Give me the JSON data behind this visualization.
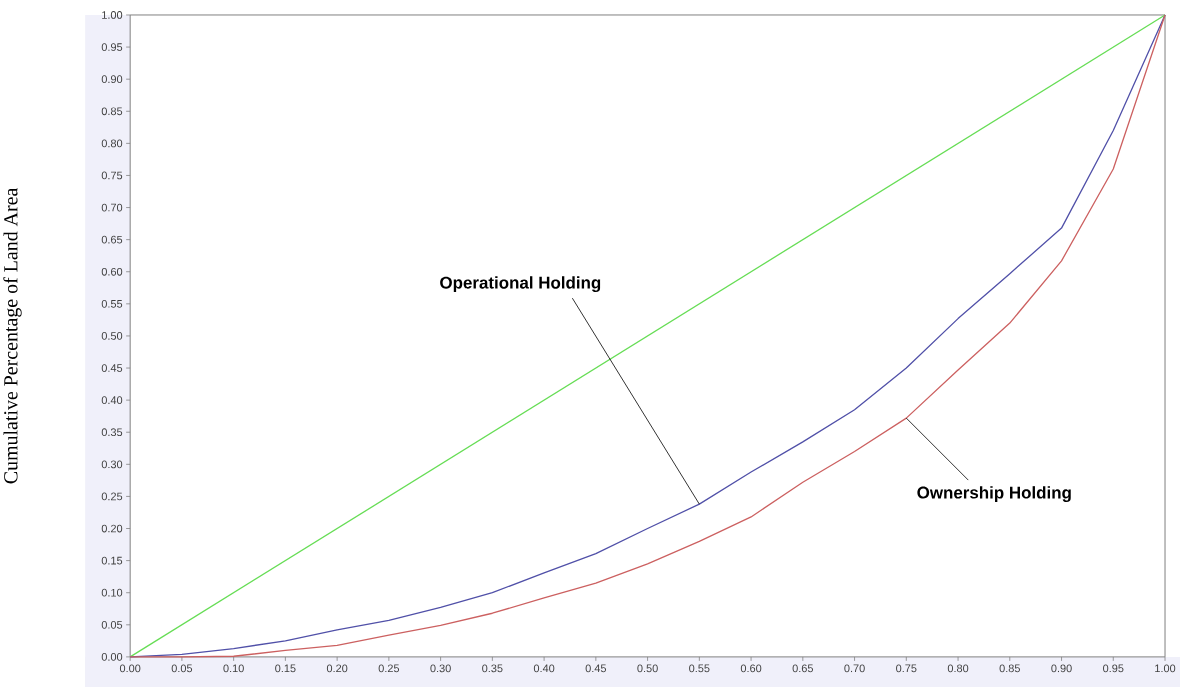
{
  "chart_data": {
    "type": "line",
    "ylabel": "Cumulative Percentage of Land Area",
    "series": [
      {
        "color": "#66dd55",
        "x": [
          0,
          1
        ],
        "values": [
          0,
          1
        ]
      },
      {
        "color": "#5050a8",
        "x": [
          0,
          0.05,
          0.1,
          0.15,
          0.2,
          0.25,
          0.3,
          0.35,
          0.4,
          0.45,
          0.5,
          0.55,
          0.6,
          0.65,
          0.7,
          0.75,
          0.8,
          0.85,
          0.9,
          0.95,
          1
        ],
        "values": [
          0,
          0.004,
          0.013,
          0.025,
          0.042,
          0.057,
          0.077,
          0.1,
          0.131,
          0.161,
          0.2,
          0.238,
          0.288,
          0.335,
          0.385,
          0.45,
          0.527,
          0.597,
          0.668,
          0.82,
          1
        ]
      },
      {
        "color": "#cc6060",
        "x": [
          0,
          0.05,
          0.1,
          0.15,
          0.2,
          0.25,
          0.3,
          0.35,
          0.4,
          0.45,
          0.5,
          0.55,
          0.6,
          0.65,
          0.7,
          0.75,
          0.8,
          0.85,
          0.9,
          0.95,
          1
        ],
        "values": [
          0,
          0,
          0.001,
          0.01,
          0.018,
          0.034,
          0.049,
          0.068,
          0.092,
          0.115,
          0.145,
          0.18,
          0.218,
          0.272,
          0.32,
          0.372,
          0.447,
          0.52,
          0.617,
          0.76,
          1
        ]
      }
    ],
    "annotations": [
      {
        "text": "Operational Holding",
        "x": 0.55,
        "y": 0.238
      },
      {
        "text": "Ownership Holding",
        "x": 0.75,
        "y": 0.372
      }
    ],
    "xlim": [
      0,
      1
    ],
    "ylim": [
      0,
      1
    ],
    "xticks": [
      {
        "value": 0,
        "label": "0.00"
      },
      {
        "value": 0.05,
        "label": "0.05"
      },
      {
        "value": 0.1,
        "label": "0.10"
      },
      {
        "value": 0.15,
        "label": "0.15"
      },
      {
        "value": 0.2,
        "label": "0.20"
      },
      {
        "value": 0.25,
        "label": "0.25"
      },
      {
        "value": 0.3,
        "label": "0.30"
      },
      {
        "value": 0.35,
        "label": "0.35"
      },
      {
        "value": 0.4,
        "label": "0.40"
      },
      {
        "value": 0.45,
        "label": "0.45"
      },
      {
        "value": 0.5,
        "label": "0.50"
      },
      {
        "value": 0.55,
        "label": "0.55"
      },
      {
        "value": 0.6,
        "label": "0.60"
      },
      {
        "value": 0.65,
        "label": "0.65"
      },
      {
        "value": 0.7,
        "label": "0.70"
      },
      {
        "value": 0.75,
        "label": "0.75"
      },
      {
        "value": 0.8,
        "label": "0.80"
      },
      {
        "value": 0.85,
        "label": "0.85"
      },
      {
        "value": 0.9,
        "label": "0.90"
      },
      {
        "value": 0.95,
        "label": "0.95"
      },
      {
        "value": 1,
        "label": "1.00"
      }
    ],
    "yticks": [
      {
        "value": 0,
        "label": "0.00"
      },
      {
        "value": 0.05,
        "label": "0.05"
      },
      {
        "value": 0.1,
        "label": "0.10"
      },
      {
        "value": 0.15,
        "label": "0.15"
      },
      {
        "value": 0.2,
        "label": "0.20"
      },
      {
        "value": 0.25,
        "label": "0.25"
      },
      {
        "value": 0.3,
        "label": "0.30"
      },
      {
        "value": 0.35,
        "label": "0.35"
      },
      {
        "value": 0.4,
        "label": "0.40"
      },
      {
        "value": 0.45,
        "label": "0.45"
      },
      {
        "value": 0.5,
        "label": "0.50"
      },
      {
        "value": 0.55,
        "label": "0.55"
      },
      {
        "value": 0.6,
        "label": "0.60"
      },
      {
        "value": 0.65,
        "label": "0.65"
      },
      {
        "value": 0.7,
        "label": "0.70"
      },
      {
        "value": 0.75,
        "label": "0.75"
      },
      {
        "value": 0.8,
        "label": "0.80"
      },
      {
        "value": 0.85,
        "label": "0.85"
      },
      {
        "value": 0.9,
        "label": "0.90"
      },
      {
        "value": 0.95,
        "label": "0.95"
      },
      {
        "value": 1,
        "label": "1.00"
      }
    ],
    "marker": "none",
    "line_style": "solid"
  }
}
